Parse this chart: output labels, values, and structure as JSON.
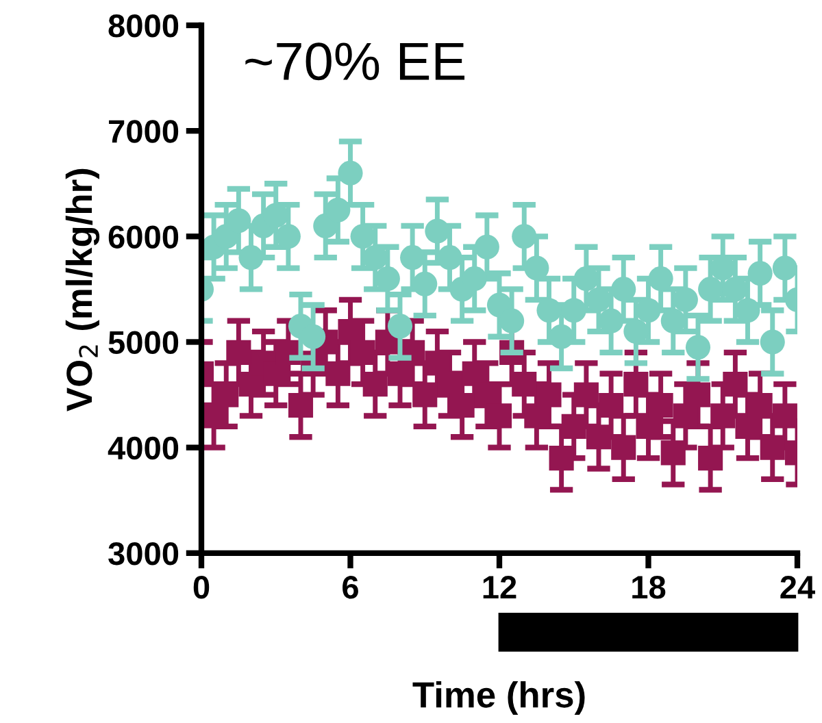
{
  "chart_data": {
    "type": "scatter",
    "xlabel": "Time (hrs)",
    "ylabel": "VO$_{2}$ (ml/kg/hr)",
    "annotations": [
      "~70% EE"
    ],
    "x": [
      0,
      0.5,
      1,
      1.5,
      2,
      2.5,
      3,
      3.5,
      4,
      4.5,
      5,
      5.5,
      6,
      6.5,
      7,
      7.5,
      8,
      8.5,
      9,
      9.5,
      10,
      10.5,
      11,
      11.5,
      12,
      12.5,
      13,
      13.5,
      14,
      14.5,
      15,
      15.5,
      16,
      16.5,
      17,
      17.5,
      18,
      18.5,
      19,
      19.5,
      20,
      20.5,
      21,
      21.5,
      22,
      22.5,
      23,
      23.5,
      24
    ],
    "series": [
      {
        "color": "#941651",
        "marker": "square",
        "values": [
          4700,
          4300,
          4500,
          4900,
          4600,
          4800,
          4700,
          4900,
          4400,
          4800,
          5000,
          4700,
          5100,
          4900,
          4600,
          5000,
          4700,
          4900,
          4500,
          4800,
          4600,
          4400,
          4700,
          4500,
          4300,
          4900,
          4600,
          4300,
          4500,
          3900,
          4200,
          4500,
          4100,
          4400,
          4000,
          4600,
          4200,
          4400,
          3950,
          4300,
          4500,
          3900,
          4300,
          4600,
          4200,
          4400,
          4000,
          4300,
          3950
        ],
        "errors": [
          300,
          300,
          300,
          300,
          300,
          300,
          300,
          300,
          300,
          300,
          300,
          300,
          300,
          300,
          300,
          300,
          300,
          300,
          300,
          300,
          300,
          300,
          300,
          300,
          300,
          300,
          300,
          300,
          300,
          300,
          300,
          300,
          300,
          300,
          300,
          300,
          300,
          300,
          300,
          300,
          300,
          300,
          300,
          300,
          300,
          300,
          300,
          300,
          300
        ]
      },
      {
        "color": "#7ccfc0",
        "marker": "circle",
        "values": [
          5500,
          5900,
          6000,
          6150,
          5800,
          6100,
          6200,
          6000,
          5150,
          5050,
          6100,
          6250,
          6600,
          6000,
          5800,
          5600,
          5150,
          5800,
          5550,
          6050,
          5800,
          5500,
          5600,
          5900,
          5350,
          5200,
          6000,
          5700,
          5300,
          5050,
          5300,
          5600,
          5400,
          5200,
          5500,
          5100,
          5300,
          5600,
          5200,
          5400,
          4950,
          5500,
          5700,
          5500,
          5300,
          5650,
          5000,
          5700,
          5400
        ],
        "errors": [
          300,
          300,
          300,
          300,
          300,
          300,
          300,
          300,
          300,
          300,
          300,
          300,
          300,
          300,
          300,
          300,
          300,
          300,
          300,
          300,
          300,
          300,
          300,
          300,
          300,
          300,
          300,
          300,
          300,
          300,
          300,
          300,
          300,
          300,
          300,
          300,
          300,
          300,
          300,
          300,
          300,
          300,
          300,
          300,
          300,
          300,
          300,
          300,
          300
        ]
      }
    ],
    "xlim": [
      0,
      24
    ],
    "xticks": [
      0,
      6,
      12,
      18,
      24
    ],
    "ylim": [
      3000,
      8000
    ],
    "yticks": [
      3000,
      4000,
      5000,
      6000,
      7000,
      8000
    ],
    "grid": false,
    "legend": false
  }
}
